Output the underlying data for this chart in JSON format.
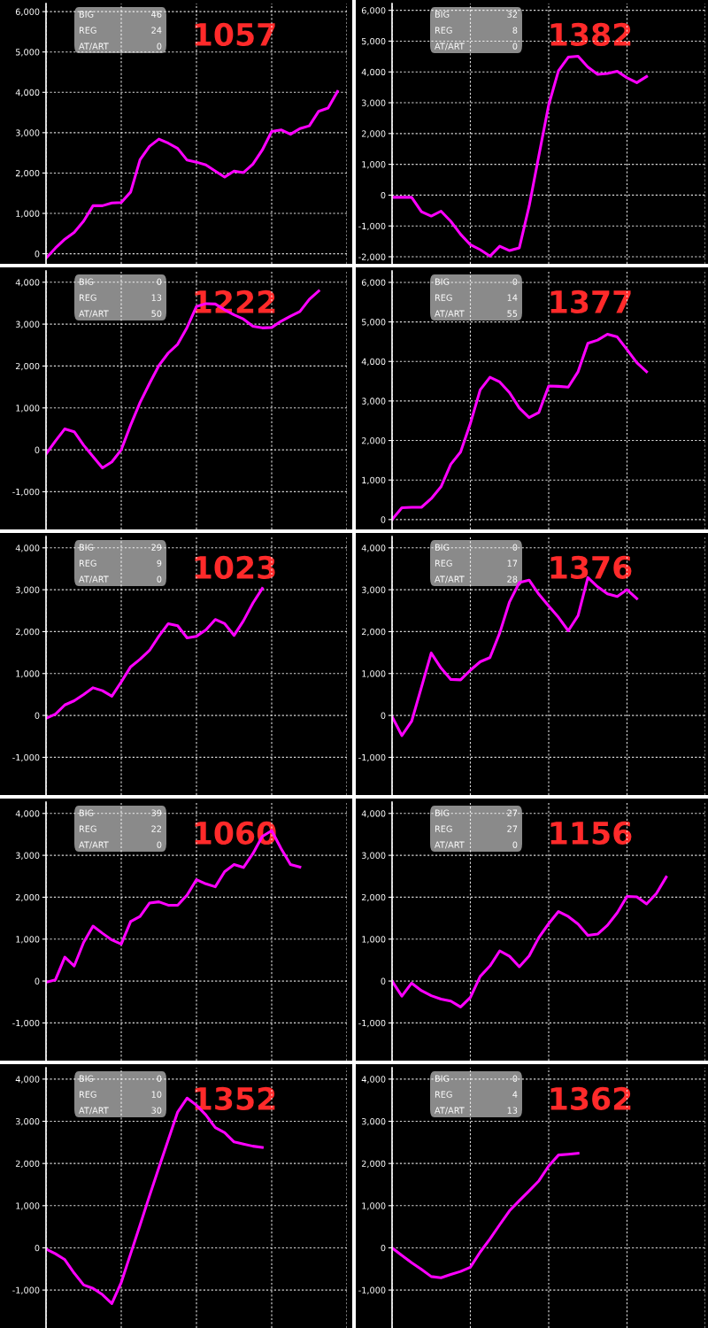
{
  "chart_data": [
    {
      "type": "line",
      "title": "1057",
      "annotations": [
        "BIG",
        "46",
        "REG",
        "24",
        "AT/ART",
        "0"
      ],
      "categories": [
        null,
        null,
        null,
        null,
        null,
        null,
        null,
        null,
        null,
        null,
        null,
        null,
        null,
        null,
        null,
        null,
        null,
        null,
        null,
        null,
        null,
        null,
        null,
        null,
        null,
        null,
        null,
        null,
        null,
        null,
        null,
        null,
        null
      ],
      "ylim": [
        -250,
        6200
      ],
      "yticks": [
        0,
        {
          "value": 1000,
          "label": "1,000"
        },
        {
          "value": 2000,
          "label": "2,000"
        },
        {
          "value": 3000,
          "label": "3,000"
        },
        {
          "value": 4000,
          "label": "4,000"
        },
        {
          "value": 5000,
          "label": "5,000"
        },
        {
          "value": 6000,
          "label": "6,000"
        }
      ],
      "grid": true,
      "tick_labels": "y",
      "series": [
        {
          "color": "#ff00ff",
          "values": [
            -110,
            140,
            360,
            530,
            810,
            1190,
            1190,
            1260,
            1270,
            1530,
            2330,
            2660,
            2840,
            2740,
            2610,
            2320,
            2270,
            2200,
            2050,
            1900,
            2050,
            2010,
            2220,
            2570,
            3030,
            3070,
            2960,
            3100,
            3170,
            3530,
            3610,
            4020,
            null
          ]
        }
      ]
    },
    {
      "type": "line",
      "title": "1382",
      "annotations": [
        "BIG",
        "32",
        "REG",
        "8",
        "AT/ART",
        "0"
      ],
      "categories": [
        null,
        null,
        null,
        null,
        null,
        null,
        null,
        null,
        null,
        null,
        null,
        null,
        null,
        null,
        null,
        null,
        null,
        null,
        null,
        null,
        null,
        null,
        null,
        null,
        null,
        null,
        null,
        null,
        null,
        null,
        null,
        null,
        null
      ],
      "ylim": [
        -2230,
        6220
      ],
      "yticks": [
        {
          "value": -2000,
          "label": "-2,000"
        },
        {
          "value": -1000,
          "label": "-1,000"
        },
        0,
        {
          "value": 1000,
          "label": "1,000"
        },
        {
          "value": 2000,
          "label": "2,000"
        },
        {
          "value": 3000,
          "label": "3,000"
        },
        {
          "value": 4000,
          "label": "4,000"
        },
        {
          "value": 5000,
          "label": "5,000"
        },
        {
          "value": 6000,
          "label": "6,000"
        }
      ],
      "grid": true,
      "tick_labels": "y",
      "series": [
        {
          "color": "#ff00ff",
          "values": [
            -70,
            -70,
            -70,
            -540,
            -680,
            -520,
            -850,
            -1270,
            -1610,
            -1770,
            -1980,
            -1660,
            -1800,
            -1710,
            -360,
            1290,
            2930,
            4040,
            4480,
            4510,
            4160,
            3920,
            3950,
            4020,
            3810,
            3650,
            3850,
            null,
            null,
            null,
            null,
            null,
            null
          ]
        }
      ]
    },
    {
      "type": "line",
      "title": "1222",
      "annotations": [
        "BIG",
        "0",
        "REG",
        "13",
        "AT/ART",
        "50"
      ],
      "categories": [
        null,
        null,
        null,
        null,
        null,
        null,
        null,
        null,
        null,
        null,
        null,
        null,
        null,
        null,
        null,
        null,
        null,
        null,
        null,
        null,
        null,
        null,
        null,
        null,
        null,
        null,
        null,
        null,
        null,
        null,
        null,
        null,
        null
      ],
      "ylim": [
        -1900,
        4270
      ],
      "yticks": [
        {
          "value": -1000,
          "label": "-1,000"
        },
        0,
        {
          "value": 1000,
          "label": "1,000"
        },
        {
          "value": 2000,
          "label": "2,000"
        },
        {
          "value": 3000,
          "label": "3,000"
        },
        {
          "value": 4000,
          "label": "4,000"
        }
      ],
      "grid": true,
      "tick_labels": "y",
      "series": [
        {
          "color": "#ff00ff",
          "values": [
            -100,
            210,
            500,
            430,
            110,
            -160,
            -430,
            -290,
            0,
            590,
            1130,
            1580,
            2010,
            2310,
            2520,
            2920,
            3420,
            3490,
            3480,
            3340,
            3220,
            3120,
            2950,
            2910,
            2920,
            3070,
            3190,
            3300,
            3590,
            3790,
            null,
            null,
            null
          ]
        }
      ]
    },
    {
      "type": "line",
      "title": "1377",
      "annotations": [
        "BIG",
        "0",
        "REG",
        "14",
        "AT/ART",
        "55"
      ],
      "categories": [
        null,
        null,
        null,
        null,
        null,
        null,
        null,
        null,
        null,
        null,
        null,
        null,
        null,
        null,
        null,
        null,
        null,
        null,
        null,
        null,
        null,
        null,
        null,
        null,
        null,
        null,
        null,
        null,
        null,
        null,
        null,
        null,
        null
      ],
      "ylim": [
        -250,
        6290
      ],
      "yticks": [
        0,
        {
          "value": 1000,
          "label": "1,000"
        },
        {
          "value": 2000,
          "label": "2,000"
        },
        {
          "value": 3000,
          "label": "3,000"
        },
        {
          "value": 4000,
          "label": "4,000"
        },
        {
          "value": 5000,
          "label": "5,000"
        },
        {
          "value": 6000,
          "label": "6,000"
        }
      ],
      "grid": true,
      "tick_labels": "y",
      "series": [
        {
          "color": "#ff00ff",
          "values": [
            0,
            300,
            310,
            310,
            530,
            830,
            1400,
            1710,
            2430,
            3280,
            3600,
            3480,
            3210,
            2820,
            2580,
            2710,
            3380,
            3370,
            3350,
            3740,
            4460,
            4540,
            4690,
            4620,
            4300,
            3970,
            3740,
            null,
            null,
            null,
            null,
            null,
            null
          ]
        }
      ]
    },
    {
      "type": "line",
      "title": "1023",
      "annotations": [
        "BIG",
        "29",
        "REG",
        "9",
        "AT/ART",
        "0"
      ],
      "categories": [
        null,
        null,
        null,
        null,
        null,
        null,
        null,
        null,
        null,
        null,
        null,
        null,
        null,
        null,
        null,
        null,
        null,
        null,
        null,
        null,
        null,
        null,
        null,
        null,
        null,
        null,
        null,
        null,
        null,
        null,
        null,
        null,
        null
      ],
      "ylim": [
        -1900,
        4270
      ],
      "yticks": [
        {
          "value": -1000,
          "label": "-1,000"
        },
        0,
        {
          "value": 1000,
          "label": "1,000"
        },
        {
          "value": 2000,
          "label": "2,000"
        },
        {
          "value": 3000,
          "label": "3,000"
        },
        {
          "value": 4000,
          "label": "4,000"
        }
      ],
      "grid": true,
      "tick_labels": "y",
      "series": [
        {
          "color": "#ff00ff",
          "values": [
            -70,
            30,
            250,
            350,
            500,
            660,
            590,
            460,
            800,
            1160,
            1340,
            1550,
            1890,
            2190,
            2140,
            1850,
            1890,
            2040,
            2290,
            2190,
            1910,
            2260,
            2680,
            3030,
            null,
            null,
            null,
            null,
            null,
            null,
            null,
            null,
            null
          ]
        }
      ]
    },
    {
      "type": "line",
      "title": "1376",
      "annotations": [
        "BIG",
        "0",
        "REG",
        "17",
        "AT/ART",
        "28"
      ],
      "categories": [
        null,
        null,
        null,
        null,
        null,
        null,
        null,
        null,
        null,
        null,
        null,
        null,
        null,
        null,
        null,
        null,
        null,
        null,
        null,
        null,
        null,
        null,
        null,
        null,
        null,
        null,
        null,
        null,
        null,
        null,
        null,
        null,
        null
      ],
      "ylim": [
        -1900,
        4270
      ],
      "yticks": [
        {
          "value": -1000,
          "label": "-1,000"
        },
        0,
        {
          "value": 1000,
          "label": "1,000"
        },
        {
          "value": 2000,
          "label": "2,000"
        },
        {
          "value": 3000,
          "label": "3,000"
        },
        {
          "value": 4000,
          "label": "4,000"
        }
      ],
      "grid": true,
      "tick_labels": "y",
      "series": [
        {
          "color": "#ff00ff",
          "values": [
            -30,
            -480,
            -140,
            670,
            1490,
            1130,
            860,
            850,
            1080,
            1280,
            1380,
            1970,
            2710,
            3170,
            3230,
            2890,
            2610,
            2340,
            2020,
            2380,
            3290,
            3070,
            2900,
            2840,
            3000,
            2790,
            null,
            null,
            null,
            null,
            null,
            null,
            null
          ]
        }
      ]
    },
    {
      "type": "line",
      "title": "1060",
      "annotations": [
        "BIG",
        "39",
        "REG",
        "22",
        "AT/ART",
        "0"
      ],
      "categories": [
        null,
        null,
        null,
        null,
        null,
        null,
        null,
        null,
        null,
        null,
        null,
        null,
        null,
        null,
        null,
        null,
        null,
        null,
        null,
        null,
        null,
        null,
        null,
        null,
        null,
        null,
        null,
        null,
        null,
        null,
        null,
        null,
        null
      ],
      "ylim": [
        -1900,
        4270
      ],
      "yticks": [
        {
          "value": -1000,
          "label": "-1,000"
        },
        0,
        {
          "value": 1000,
          "label": "1,000"
        },
        {
          "value": 2000,
          "label": "2,000"
        },
        {
          "value": 3000,
          "label": "3,000"
        },
        {
          "value": 4000,
          "label": "4,000"
        }
      ],
      "grid": true,
      "tick_labels": "y",
      "series": [
        {
          "color": "#ff00ff",
          "values": [
            -30,
            30,
            570,
            360,
            920,
            1310,
            1140,
            980,
            880,
            1420,
            1540,
            1860,
            1890,
            1810,
            1810,
            2050,
            2420,
            2320,
            2250,
            2610,
            2780,
            2710,
            3040,
            3450,
            3590,
            3160,
            2780,
            2720,
            null,
            null,
            null,
            null,
            null
          ]
        }
      ]
    },
    {
      "type": "line",
      "title": "1156",
      "annotations": [
        "BIG",
        "27",
        "REG",
        "27",
        "AT/ART",
        "0"
      ],
      "categories": [
        null,
        null,
        null,
        null,
        null,
        null,
        null,
        null,
        null,
        null,
        null,
        null,
        null,
        null,
        null,
        null,
        null,
        null,
        null,
        null,
        null,
        null,
        null,
        null,
        null,
        null,
        null,
        null,
        null,
        null,
        null,
        null,
        null
      ],
      "ylim": [
        -1900,
        4270
      ],
      "yticks": [
        {
          "value": -1000,
          "label": "-1,000"
        },
        0,
        {
          "value": 1000,
          "label": "1,000"
        },
        {
          "value": 2000,
          "label": "2,000"
        },
        {
          "value": 3000,
          "label": "3,000"
        },
        {
          "value": 4000,
          "label": "4,000"
        }
      ],
      "grid": true,
      "tick_labels": "y",
      "series": [
        {
          "color": "#ff00ff",
          "values": [
            0,
            -360,
            -50,
            -230,
            -350,
            -430,
            -480,
            -620,
            -390,
            110,
            360,
            720,
            590,
            340,
            600,
            1040,
            1370,
            1660,
            1540,
            1360,
            1090,
            1120,
            1330,
            1630,
            2020,
            2010,
            1840,
            2090,
            2480,
            null,
            null,
            null,
            null
          ]
        }
      ]
    },
    {
      "type": "line",
      "title": "1352",
      "annotations": [
        "BIG",
        "0",
        "REG",
        "10",
        "AT/ART",
        "30"
      ],
      "categories": [
        null,
        null,
        null,
        null,
        null,
        null,
        null,
        null,
        null,
        null,
        null,
        null,
        null,
        null,
        null,
        null,
        null,
        null,
        null,
        null,
        null,
        null,
        null,
        null,
        null,
        null,
        null,
        null,
        null,
        null,
        null,
        null,
        null
      ],
      "ylim": [
        -1900,
        4270
      ],
      "yticks": [
        {
          "value": -1000,
          "label": "-1,000"
        },
        0,
        {
          "value": 1000,
          "label": "1,000"
        },
        {
          "value": 2000,
          "label": "2,000"
        },
        {
          "value": 3000,
          "label": "3,000"
        },
        {
          "value": 4000,
          "label": "4,000"
        }
      ],
      "grid": true,
      "tick_labels": "y",
      "series": [
        {
          "color": "#ff00ff",
          "values": [
            -30,
            -140,
            -280,
            -600,
            -880,
            -960,
            -1110,
            -1320,
            -820,
            -140,
            540,
            1230,
            1900,
            2560,
            3220,
            3550,
            3380,
            3150,
            2850,
            2730,
            2510,
            2460,
            2410,
            2380,
            null,
            null,
            null,
            null,
            null,
            null,
            null,
            null,
            null
          ]
        }
      ]
    },
    {
      "type": "line",
      "title": "1362",
      "annotations": [
        "BIG",
        "0",
        "REG",
        "4",
        "AT/ART",
        "13"
      ],
      "categories": [
        null,
        null,
        null,
        null,
        null,
        null,
        null,
        null,
        null,
        null,
        null,
        null,
        null,
        null,
        null,
        null,
        null,
        null,
        null,
        null,
        null,
        null,
        null,
        null,
        null,
        null,
        null,
        null,
        null,
        null,
        null,
        null,
        null
      ],
      "ylim": [
        -1900,
        4270
      ],
      "yticks": [
        {
          "value": -1000,
          "label": "-1,000"
        },
        0,
        {
          "value": 1000,
          "label": "1,000"
        },
        {
          "value": 2000,
          "label": "2,000"
        },
        {
          "value": 3000,
          "label": "3,000"
        },
        {
          "value": 4000,
          "label": "4,000"
        }
      ],
      "grid": true,
      "tick_labels": "y",
      "series": [
        {
          "color": "#ff00ff",
          "values": [
            0,
            -180,
            -350,
            -510,
            -680,
            -710,
            -630,
            -560,
            -460,
            -100,
            210,
            550,
            880,
            1120,
            1350,
            1590,
            1940,
            2200,
            2220,
            2240,
            null,
            null,
            null,
            null,
            null,
            null,
            null,
            null,
            null,
            null,
            null,
            null,
            null
          ]
        }
      ]
    }
  ]
}
